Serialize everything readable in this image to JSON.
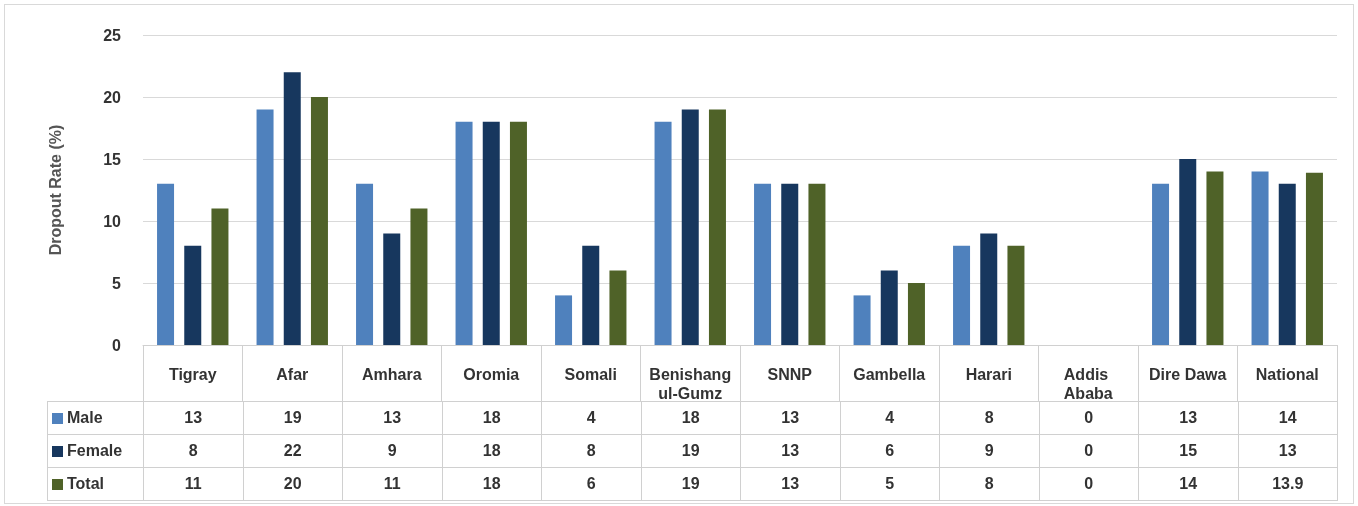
{
  "chart_data": {
    "type": "bar",
    "ylabel": "Dropout Rate (%)",
    "categories": [
      "Tigray",
      "Afar",
      "Amhara",
      "Oromia",
      "Somali",
      "Benishangul-Gumz",
      "SNNP",
      "Gambella",
      "Harari",
      "Addis Ababa",
      "Dire Dawa",
      "National"
    ],
    "series": [
      {
        "name": "Male",
        "color": "#4f81bd",
        "values": [
          13,
          19,
          13,
          18,
          4,
          18,
          13,
          4,
          8,
          0,
          13,
          14
        ]
      },
      {
        "name": "Female",
        "color": "#17375e",
        "values": [
          8,
          22,
          9,
          18,
          8,
          19,
          13,
          6,
          9,
          0,
          15,
          13
        ]
      },
      {
        "name": "Total",
        "color": "#4f6228",
        "values": [
          11,
          20,
          11,
          18,
          6,
          19,
          13,
          5,
          8,
          0,
          14,
          13.9
        ]
      }
    ],
    "ylim": [
      0,
      25
    ],
    "yticks": [
      0,
      5,
      10,
      15,
      20,
      25
    ],
    "grid": "y",
    "legend": "bottom",
    "data_labels": true
  }
}
